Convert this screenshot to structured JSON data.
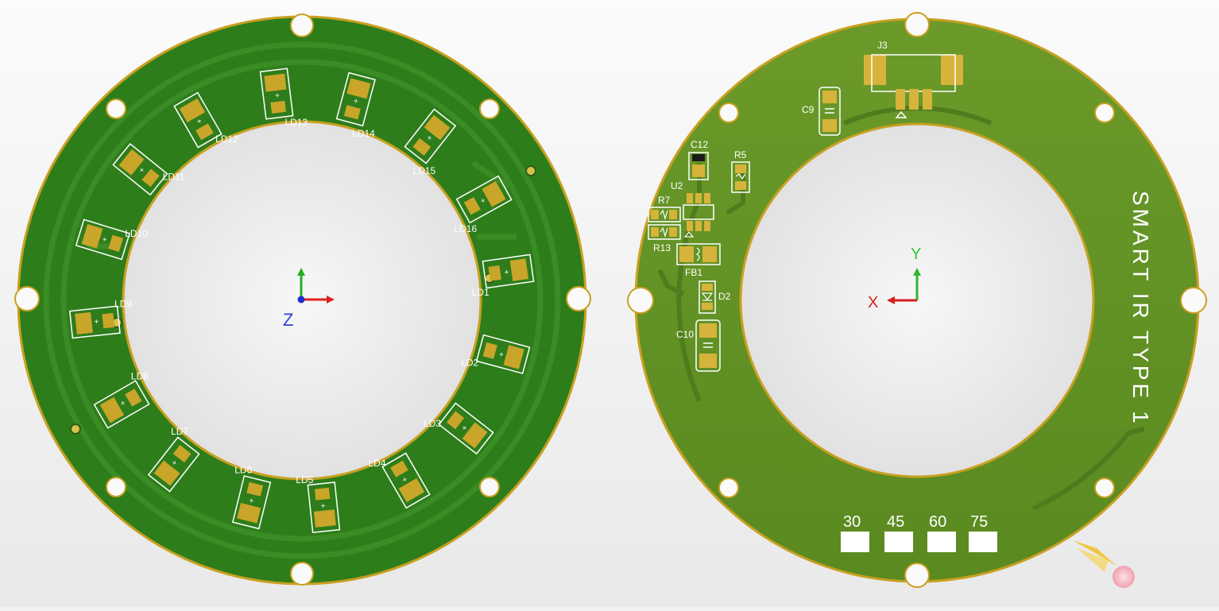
{
  "front_board": {
    "leds": [
      {
        "label": "LD1",
        "angle": 8
      },
      {
        "label": "LD2",
        "angle": -15
      },
      {
        "label": "LD3",
        "angle": -38
      },
      {
        "label": "LD4",
        "angle": -60
      },
      {
        "label": "LD5",
        "angle": -84
      },
      {
        "label": "LD6",
        "angle": -104
      },
      {
        "label": "LD7",
        "angle": -128
      },
      {
        "label": "LD8",
        "angle": -150
      },
      {
        "label": "LD9",
        "angle": -174
      },
      {
        "label": "LD10",
        "angle": 163
      },
      {
        "label": "LD11",
        "angle": 141
      },
      {
        "label": "LD12",
        "angle": 120
      },
      {
        "label": "LD13",
        "angle": 97
      },
      {
        "label": "LD14",
        "angle": 75
      },
      {
        "label": "LD15",
        "angle": 52
      },
      {
        "label": "LD16",
        "angle": 29
      }
    ],
    "axis_label": "Z",
    "colors": {
      "board": "#2e7d1b",
      "board_dark": "#1f5c12",
      "pad": "#c9a52a",
      "outline": "#ffffff"
    }
  },
  "back_board": {
    "silkscreen_text": "SMART IR TYPE 1",
    "components": {
      "j3": "J3",
      "c9": "C9",
      "c12": "C12",
      "r5": "R5",
      "u2": "U2",
      "r7": "R7",
      "r13": "R13",
      "fb1": "FB1",
      "d2": "D2",
      "c10": "C10"
    },
    "axes": {
      "x": "X",
      "y": "Y"
    },
    "angle_marks": [
      "30",
      "45",
      "60",
      "75"
    ],
    "colors": {
      "board": "#5f8f24",
      "pad": "#c9a52a",
      "axis_x": "#d42020",
      "axis_y": "#2fb52f"
    }
  }
}
